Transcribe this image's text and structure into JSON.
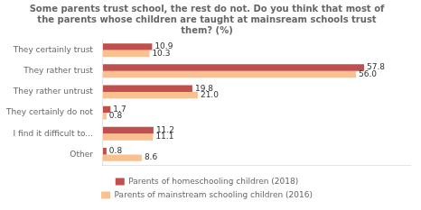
{
  "chart_data": {
    "type": "bar",
    "orientation": "horizontal",
    "title": "Some parents trust school, the rest do not. Do you think that most of\nthe parents whose children are taught at mainsream schools trust\nthem? (%)",
    "categories": [
      "They certainly trust",
      "They rather trust",
      "They rather untrust",
      "They certainly do not",
      "I find it difficult to...",
      "Other"
    ],
    "series": [
      {
        "name": "Parents of homeschooling children (2018)",
        "color": "#C0504D",
        "values": [
          10.9,
          57.8,
          19.8,
          1.7,
          11.2,
          0.8
        ]
      },
      {
        "name": "Parents of mainstream schooling children (2016)",
        "color": "#FAC090",
        "values": [
          10.3,
          56.0,
          21.0,
          0.8,
          11.1,
          8.6
        ],
        "value_labels": [
          "10.3",
          "56.0",
          "21.0",
          "0.8",
          "11.1",
          "8.6"
        ]
      }
    ],
    "xlim": [
      0,
      68
    ],
    "grid": false,
    "legend": "bottom",
    "data_labels": true,
    "tick_labels": "y"
  }
}
